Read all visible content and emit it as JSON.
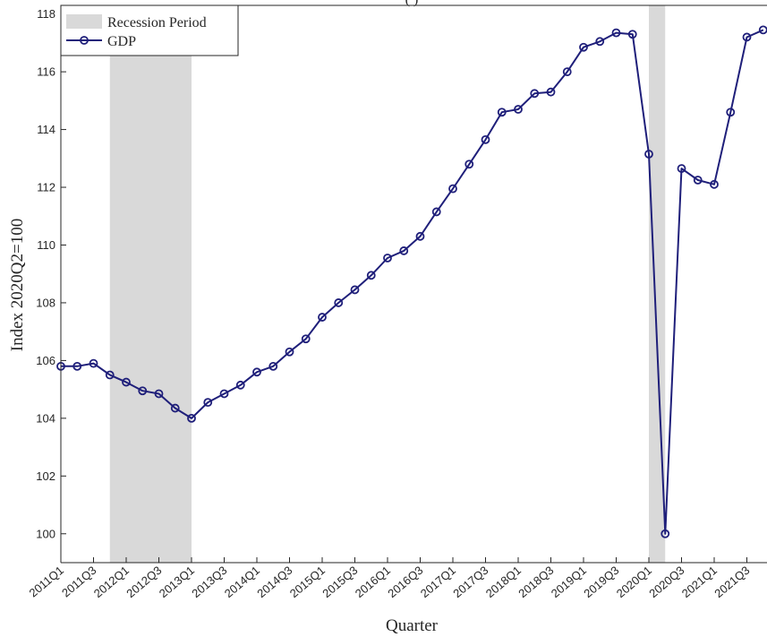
{
  "chart_data": {
    "type": "line",
    "title_partial": "(              )",
    "xlabel": "Quarter",
    "ylabel": "Index 2020Q2=100",
    "ylim": [
      99,
      118.3
    ],
    "yticks": [
      100,
      102,
      104,
      106,
      108,
      110,
      112,
      114,
      116,
      118
    ],
    "grid": false,
    "legend_position": "top-left",
    "legend": [
      {
        "label": "Recession Period",
        "kind": "area",
        "color": "#d9d9d9"
      },
      {
        "label": "GDP",
        "kind": "line-marker",
        "color": "#1f1f7a"
      }
    ],
    "xtick_labels": [
      "2011Q1",
      "2011Q3",
      "2012Q1",
      "2012Q3",
      "2013Q1",
      "2013Q3",
      "2014Q1",
      "2014Q3",
      "2015Q1",
      "2015Q3",
      "2016Q1",
      "2016Q3",
      "2017Q1",
      "2017Q3",
      "2018Q1",
      "2018Q3",
      "2019Q1",
      "2019Q3",
      "2020Q1",
      "2020Q3",
      "2021Q1",
      "2021Q3"
    ],
    "recession_periods": [
      {
        "start": "2011Q4",
        "end": "2013Q1"
      },
      {
        "start": "2020Q1",
        "end": "2020Q2"
      }
    ],
    "series": [
      {
        "name": "GDP",
        "color": "#1f1f7a",
        "x": [
          "2011Q1",
          "2011Q2",
          "2011Q3",
          "2011Q4",
          "2012Q1",
          "2012Q2",
          "2012Q3",
          "2012Q4",
          "2013Q1",
          "2013Q2",
          "2013Q3",
          "2013Q4",
          "2014Q1",
          "2014Q2",
          "2014Q3",
          "2014Q4",
          "2015Q1",
          "2015Q2",
          "2015Q3",
          "2015Q4",
          "2016Q1",
          "2016Q2",
          "2016Q3",
          "2016Q4",
          "2017Q1",
          "2017Q2",
          "2017Q3",
          "2017Q4",
          "2018Q1",
          "2018Q2",
          "2018Q3",
          "2018Q4",
          "2019Q1",
          "2019Q2",
          "2019Q3",
          "2019Q4",
          "2020Q1",
          "2020Q2",
          "2020Q3",
          "2020Q4",
          "2021Q1",
          "2021Q2",
          "2021Q3",
          "2021Q4"
        ],
        "values": [
          105.8,
          105.8,
          105.9,
          105.5,
          105.25,
          104.95,
          104.85,
          104.35,
          104.0,
          104.55,
          104.85,
          105.15,
          105.6,
          105.8,
          106.3,
          106.75,
          107.5,
          108.0,
          108.45,
          108.95,
          109.55,
          109.8,
          110.3,
          111.15,
          111.95,
          112.8,
          113.65,
          114.6,
          114.7,
          115.25,
          115.3,
          116.0,
          116.85,
          117.05,
          117.35,
          117.3,
          113.15,
          100.0,
          112.65,
          112.25,
          112.1,
          114.6,
          117.2,
          117.45
        ]
      }
    ]
  }
}
